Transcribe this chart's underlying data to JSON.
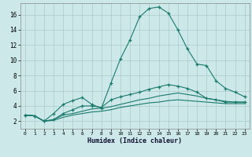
{
  "xlabel": "Humidex (Indice chaleur)",
  "bg_color": "#cce8e8",
  "line_color": "#1a7a6e",
  "grid_color": "#aacccc",
  "xlim": [
    -0.5,
    23.5
  ],
  "ylim": [
    1,
    17.5
  ],
  "xticks": [
    0,
    1,
    2,
    3,
    4,
    5,
    6,
    7,
    8,
    9,
    10,
    11,
    12,
    13,
    14,
    15,
    16,
    17,
    18,
    19,
    20,
    21,
    22,
    23
  ],
  "yticks": [
    2,
    4,
    6,
    8,
    10,
    12,
    14,
    16
  ],
  "line1_x": [
    0,
    1,
    2,
    3,
    4,
    5,
    6,
    7,
    8,
    9,
    10,
    11,
    12,
    13,
    14,
    15,
    16,
    17,
    18,
    19,
    20,
    21,
    22,
    23
  ],
  "line1_y": [
    2.8,
    2.7,
    2.0,
    3.0,
    4.2,
    4.7,
    5.1,
    4.2,
    3.7,
    7.0,
    10.2,
    12.7,
    15.7,
    16.8,
    17.0,
    16.2,
    14.0,
    11.5,
    9.5,
    9.3,
    7.3,
    6.3,
    5.8,
    5.2
  ],
  "line2_x": [
    0,
    1,
    2,
    3,
    4,
    5,
    6,
    7,
    8,
    9,
    10,
    11,
    12,
    13,
    14,
    15,
    16,
    17,
    18,
    19,
    20,
    21,
    22,
    23
  ],
  "line2_y": [
    2.8,
    2.7,
    2.0,
    2.2,
    3.0,
    3.5,
    4.0,
    4.0,
    3.8,
    4.8,
    5.2,
    5.5,
    5.8,
    6.2,
    6.5,
    6.8,
    6.6,
    6.3,
    5.8,
    5.0,
    4.8,
    4.5,
    4.5,
    4.5
  ],
  "line3_x": [
    0,
    1,
    2,
    3,
    4,
    5,
    6,
    7,
    8,
    9,
    10,
    11,
    12,
    13,
    14,
    15,
    16,
    17,
    18,
    19,
    20,
    21,
    22,
    23
  ],
  "line3_y": [
    2.8,
    2.7,
    2.0,
    2.2,
    2.8,
    3.0,
    3.3,
    3.6,
    3.7,
    3.9,
    4.2,
    4.5,
    4.8,
    5.0,
    5.3,
    5.5,
    5.7,
    5.5,
    5.3,
    5.0,
    4.8,
    4.6,
    4.5,
    4.5
  ],
  "line4_x": [
    0,
    1,
    2,
    3,
    4,
    5,
    6,
    7,
    8,
    9,
    10,
    11,
    12,
    13,
    14,
    15,
    16,
    17,
    18,
    19,
    20,
    21,
    22,
    23
  ],
  "line4_y": [
    2.8,
    2.7,
    2.0,
    2.1,
    2.5,
    2.8,
    3.0,
    3.2,
    3.3,
    3.5,
    3.8,
    4.0,
    4.2,
    4.4,
    4.5,
    4.7,
    4.8,
    4.7,
    4.6,
    4.5,
    4.4,
    4.3,
    4.3,
    4.3
  ]
}
